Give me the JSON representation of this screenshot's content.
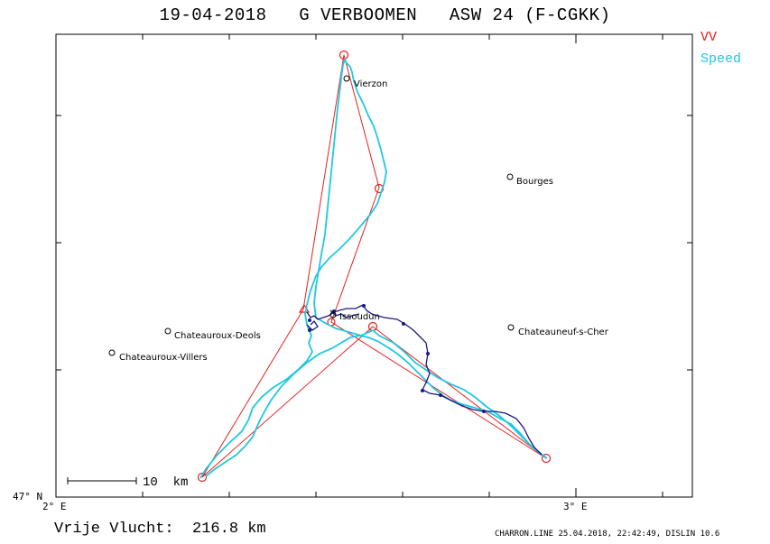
{
  "header": {
    "title": "19-04-2018   G VERBOOMEN   ASW 24 (F-CGKK)"
  },
  "legend": {
    "vv_label": "VV",
    "speed_label": "Speed",
    "vv_color": "#e62020",
    "speed_color": "#20c8e0",
    "climb_color": "#1a1a80"
  },
  "axes": {
    "x_ticks": [
      "2° E",
      "3° E"
    ],
    "y_ticks": [
      "47° N"
    ]
  },
  "scale_bar": {
    "label": "10  km"
  },
  "places": [
    {
      "name": "Vierzon"
    },
    {
      "name": "Bourges"
    },
    {
      "name": "Chateauroux-Deols"
    },
    {
      "name": "Chateauroux-Villers"
    },
    {
      "name": "Issoudun"
    },
    {
      "name": "Chateauneuf-s-Cher"
    }
  ],
  "footer": {
    "distance": "Vrije Vlucht:  216.8 km",
    "credits": "CHARRON.LINE 25.04.2018, 22:42:49, DISLIN 10.6"
  }
}
